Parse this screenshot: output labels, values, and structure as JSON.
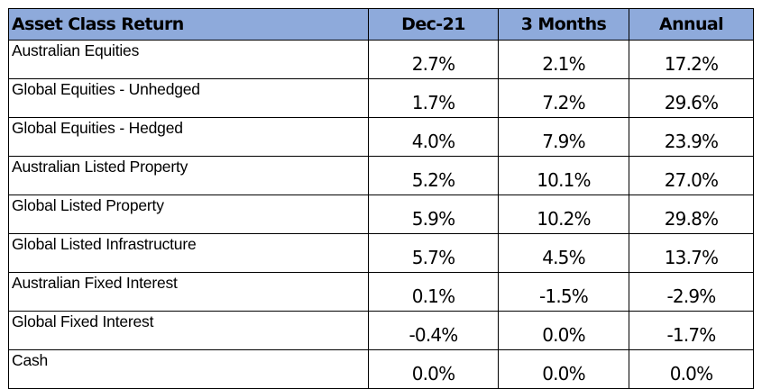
{
  "table": {
    "header": {
      "asset_class": "Asset Class Return",
      "columns": [
        "Dec-21",
        "3 Months",
        "Annual"
      ]
    },
    "rows": [
      {
        "name": "Australian Equities",
        "values": [
          "2.7%",
          "2.1%",
          "17.2%"
        ]
      },
      {
        "name": "Global Equities - Unhedged",
        "values": [
          "1.7%",
          "7.2%",
          "29.6%"
        ]
      },
      {
        "name": "Global Equities - Hedged",
        "values": [
          "4.0%",
          "7.9%",
          "23.9%"
        ]
      },
      {
        "name": "Australian Listed Property",
        "values": [
          "5.2%",
          "10.1%",
          "27.0%"
        ]
      },
      {
        "name": "Global Listed Property",
        "values": [
          "5.9%",
          "10.2%",
          "29.8%"
        ]
      },
      {
        "name": "Global Listed Infrastructure",
        "values": [
          "5.7%",
          "4.5%",
          "13.7%"
        ]
      },
      {
        "name": "Australian Fixed Interest",
        "values": [
          "0.1%",
          "-1.5%",
          "-2.9%"
        ]
      },
      {
        "name": "Global Fixed Interest",
        "values": [
          "-0.4%",
          "0.0%",
          "-1.7%"
        ]
      },
      {
        "name": "Cash",
        "values": [
          "0.0%",
          "0.0%",
          "0.0%"
        ]
      }
    ]
  },
  "colors": {
    "header_background": "#8eaadb",
    "border": "#000000",
    "text": "#000000"
  }
}
